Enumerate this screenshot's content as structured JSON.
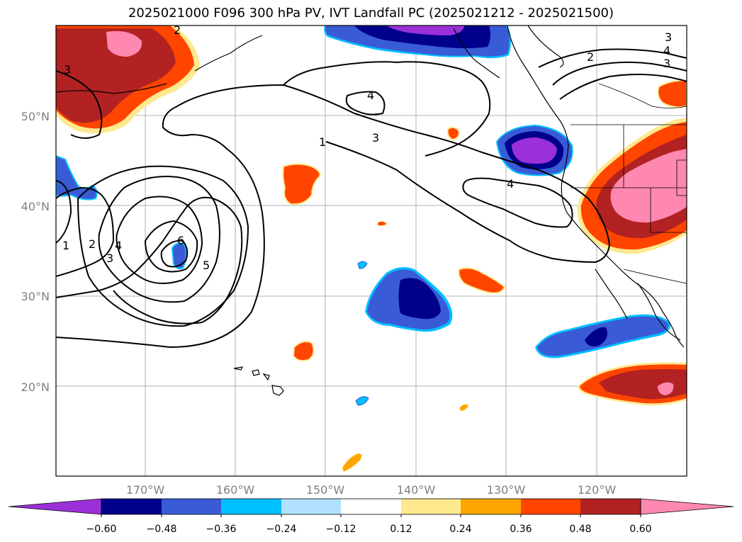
{
  "title": "2025021000 F096 300 hPa PV, IVT Landfall PC (2025021212 - 2025021500)",
  "map": {
    "lat_labels": [
      "50°N",
      "40°N",
      "30°N",
      "20°N"
    ],
    "lon_labels": [
      "170°W",
      "160°W",
      "150°W",
      "140°W",
      "130°W",
      "120°W"
    ]
  },
  "contour_labels": [
    "1",
    "2",
    "3",
    "4",
    "5",
    "6",
    "1",
    "2",
    "3",
    "4",
    "3",
    "4",
    "2",
    "4",
    "3",
    "3"
  ],
  "colorbar": {
    "tick_labels": [
      "−0.60",
      "−0.48",
      "−0.36",
      "−0.24",
      "−0.12",
      "0.12",
      "0.24",
      "0.36",
      "0.48",
      "0.60"
    ],
    "colors": [
      "#9b30d9",
      "#00008b",
      "#3a5bd6",
      "#00bfff",
      "#b0e2ff",
      "#ffffff",
      "#ffe98f",
      "#ffa500",
      "#ff4500",
      "#b22222",
      "#ff88b0",
      "#ff88b0"
    ]
  }
}
